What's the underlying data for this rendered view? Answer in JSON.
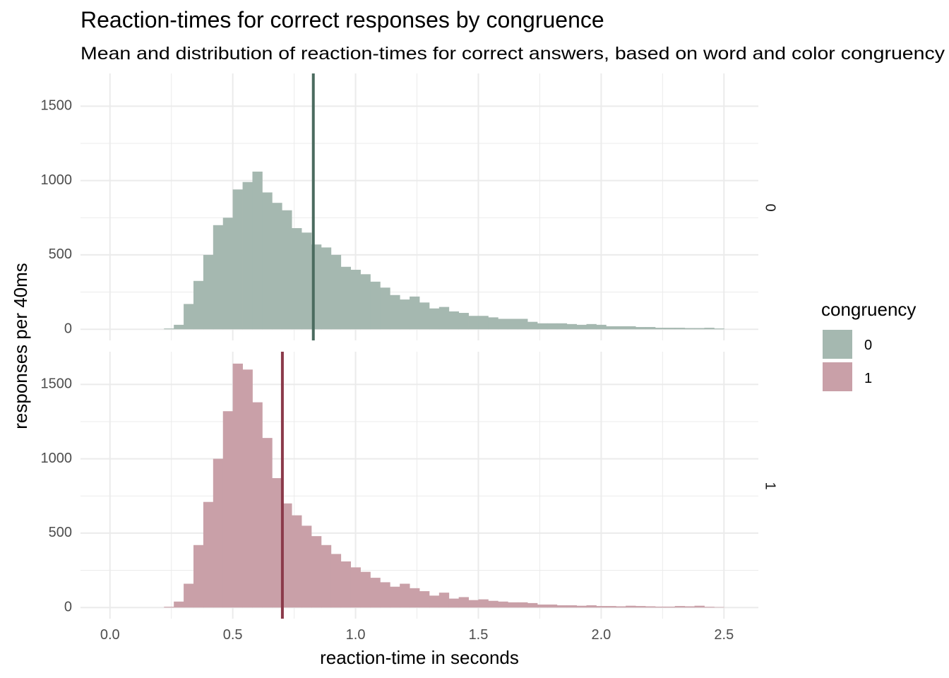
{
  "chart_data": {
    "type": "histogram",
    "title": "Reaction-times for correct responses by congruence",
    "subtitle": "Mean and distribution of reaction-times for correct answers, based on word and color congruency",
    "xlabel": "reaction-time in seconds",
    "ylabel": "responses per 40ms",
    "xlim": [
      -0.12,
      2.64
    ],
    "ylim": [
      -75,
      1720
    ],
    "x_ticks": [
      0.0,
      0.5,
      1.0,
      1.5,
      2.0,
      2.5
    ],
    "x_tick_labels": [
      "0.0",
      "0.5",
      "1.0",
      "1.5",
      "2.0",
      "2.5"
    ],
    "y_ticks": [
      0,
      500,
      1000,
      1500
    ],
    "y_tick_labels": [
      "0",
      "500",
      "1000",
      "1500"
    ],
    "bin_width": 0.04,
    "grid": true,
    "legend": {
      "title": "congruency",
      "position": "right",
      "entries": [
        {
          "label": "0",
          "color": "#a5b8b0"
        },
        {
          "label": "1",
          "color": "#c9a0a8"
        }
      ]
    },
    "panels": [
      {
        "strip": "0",
        "name": "0",
        "color": "#a5b8b0",
        "mean_color": "#4b6b5f",
        "mean": 0.828,
        "bin_starts": [
          0.22,
          0.26,
          0.3,
          0.34,
          0.38,
          0.42,
          0.46,
          0.5,
          0.54,
          0.58,
          0.62,
          0.66,
          0.7,
          0.74,
          0.78,
          0.82,
          0.86,
          0.9,
          0.94,
          0.98,
          1.02,
          1.06,
          1.1,
          1.14,
          1.18,
          1.22,
          1.26,
          1.3,
          1.34,
          1.38,
          1.42,
          1.46,
          1.5,
          1.54,
          1.58,
          1.62,
          1.66,
          1.7,
          1.74,
          1.78,
          1.82,
          1.86,
          1.9,
          1.94,
          1.98,
          2.02,
          2.06,
          2.1,
          2.14,
          2.18,
          2.22,
          2.26,
          2.3,
          2.34,
          2.38,
          2.42,
          2.46
        ],
        "counts": [
          5,
          30,
          170,
          325,
          500,
          700,
          750,
          940,
          990,
          1060,
          920,
          850,
          800,
          680,
          650,
          570,
          550,
          500,
          420,
          400,
          370,
          320,
          280,
          230,
          200,
          220,
          180,
          140,
          150,
          120,
          110,
          90,
          90,
          80,
          70,
          70,
          70,
          50,
          40,
          40,
          40,
          35,
          30,
          35,
          30,
          20,
          20,
          20,
          15,
          15,
          10,
          10,
          10,
          8,
          8,
          10,
          5
        ]
      },
      {
        "strip": "1",
        "name": "1",
        "color": "#c9a0a8",
        "mean_color": "#8b3a4a",
        "mean": 0.702,
        "bin_starts": [
          0.22,
          0.26,
          0.3,
          0.34,
          0.38,
          0.42,
          0.46,
          0.5,
          0.54,
          0.58,
          0.62,
          0.66,
          0.7,
          0.74,
          0.78,
          0.82,
          0.86,
          0.9,
          0.94,
          0.98,
          1.02,
          1.06,
          1.1,
          1.14,
          1.18,
          1.22,
          1.26,
          1.3,
          1.34,
          1.38,
          1.42,
          1.46,
          1.5,
          1.54,
          1.58,
          1.62,
          1.66,
          1.7,
          1.74,
          1.78,
          1.82,
          1.86,
          1.9,
          1.94,
          1.98,
          2.02,
          2.06,
          2.1,
          2.14,
          2.18,
          2.22,
          2.26,
          2.3,
          2.34,
          2.38,
          2.42,
          2.46
        ],
        "counts": [
          5,
          40,
          160,
          420,
          710,
          1000,
          1320,
          1640,
          1600,
          1380,
          1140,
          870,
          700,
          620,
          550,
          480,
          420,
          360,
          310,
          270,
          240,
          200,
          170,
          140,
          160,
          130,
          110,
          80,
          100,
          60,
          70,
          50,
          55,
          45,
          40,
          35,
          35,
          30,
          20,
          20,
          15,
          15,
          12,
          15,
          10,
          10,
          8,
          12,
          10,
          8,
          6,
          6,
          10,
          8,
          12,
          5,
          3
        ]
      }
    ]
  }
}
